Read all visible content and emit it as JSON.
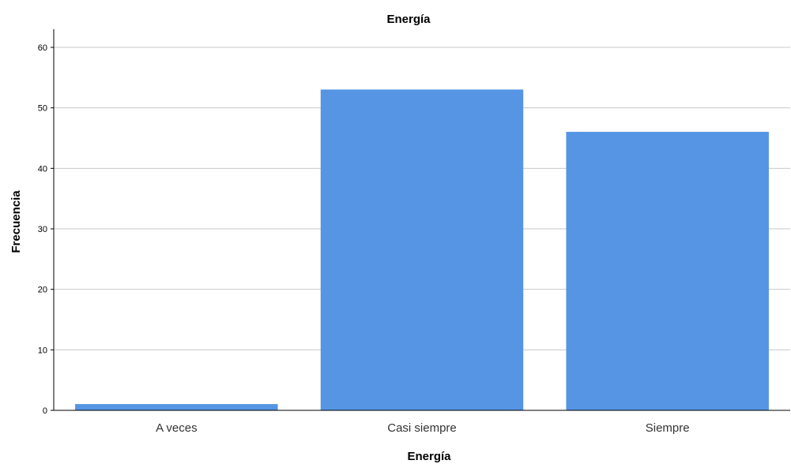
{
  "chart_data": {
    "type": "bar",
    "title": "Energía",
    "xlabel": "Energía",
    "ylabel": "Frecuencia",
    "categories": [
      "A veces",
      "Casi siempre",
      "Siempre"
    ],
    "values": [
      1,
      53,
      46
    ],
    "ylim": [
      0,
      63
    ],
    "yticks": [
      "0",
      "10",
      "20",
      "30",
      "40",
      "50",
      "60"
    ],
    "grid": true,
    "legend": "none",
    "bar_color": "#5595e4"
  }
}
